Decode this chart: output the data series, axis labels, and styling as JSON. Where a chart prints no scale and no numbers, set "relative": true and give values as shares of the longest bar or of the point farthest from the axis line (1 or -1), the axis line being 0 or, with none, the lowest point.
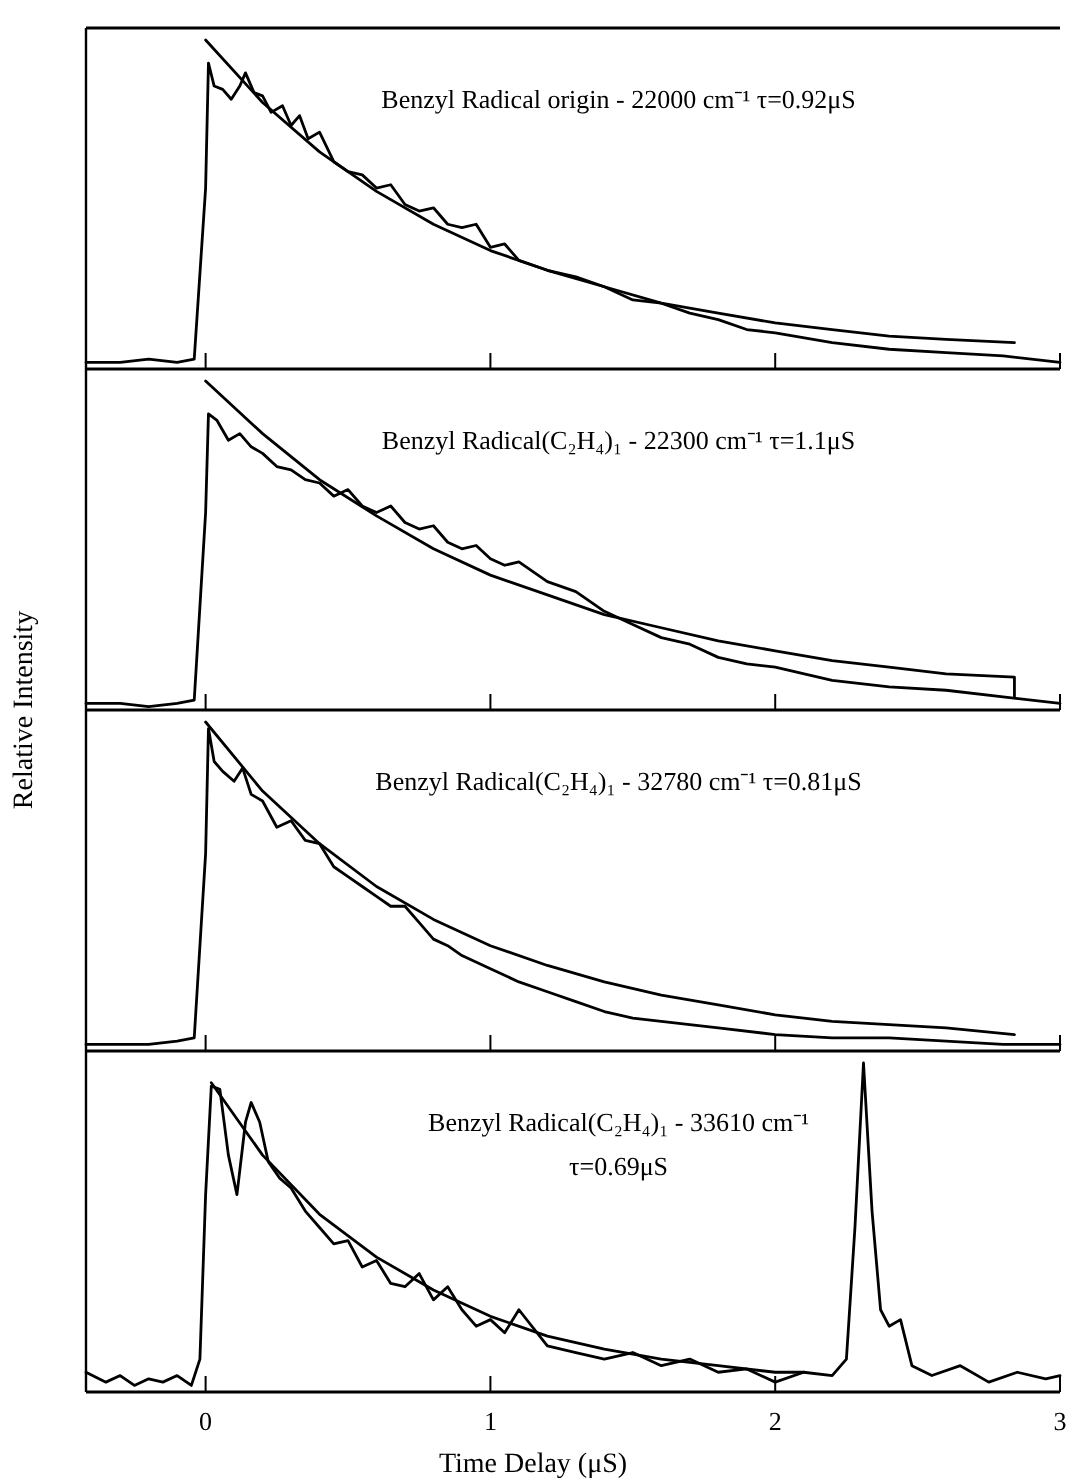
{
  "chart_data": [
    {
      "type": "line",
      "relative": true,
      "xlim": [
        -0.42,
        3
      ],
      "xticks": [
        0,
        1,
        2,
        3
      ],
      "tick_labels": false,
      "grid": false,
      "annotations": [
        "Benzyl Radical origin - 22000 cm⁻¹  τ=0.92μS"
      ],
      "series": [
        {
          "color": "#000000",
          "x": [
            -0.42,
            -0.3,
            -0.2,
            -0.1,
            -0.04,
            0,
            0.01,
            0.03,
            0.06,
            0.09,
            0.12,
            0.14,
            0.17,
            0.2,
            0.23,
            0.27,
            0.3,
            0.33,
            0.36,
            0.4,
            0.45,
            0.5,
            0.55,
            0.6,
            0.65,
            0.7,
            0.75,
            0.8,
            0.85,
            0.9,
            0.95,
            1.0,
            1.05,
            1.1,
            1.2,
            1.3,
            1.4,
            1.5,
            1.6,
            1.7,
            1.8,
            1.9,
            2.0,
            2.2,
            2.4,
            2.6,
            2.8,
            3.0
          ],
          "values": [
            0.02,
            0.02,
            0.03,
            0.02,
            0.03,
            0.55,
            0.93,
            0.86,
            0.85,
            0.82,
            0.86,
            0.9,
            0.84,
            0.83,
            0.78,
            0.8,
            0.74,
            0.77,
            0.7,
            0.72,
            0.63,
            0.6,
            0.59,
            0.55,
            0.56,
            0.5,
            0.48,
            0.49,
            0.44,
            0.43,
            0.44,
            0.37,
            0.38,
            0.33,
            0.3,
            0.28,
            0.25,
            0.21,
            0.2,
            0.17,
            0.15,
            0.12,
            0.11,
            0.08,
            0.06,
            0.05,
            0.04,
            0.02
          ]
        },
        {
          "color": "#000000",
          "x": [
            0,
            0.2,
            0.4,
            0.6,
            0.8,
            1.0,
            1.2,
            1.4,
            1.6,
            1.8,
            2.0,
            2.2,
            2.4,
            2.6,
            2.84
          ],
          "values": [
            1.0,
            0.81,
            0.66,
            0.54,
            0.44,
            0.36,
            0.3,
            0.25,
            0.2,
            0.17,
            0.14,
            0.12,
            0.1,
            0.09,
            0.08
          ]
        }
      ]
    },
    {
      "type": "line",
      "relative": true,
      "xlim": [
        -0.42,
        3
      ],
      "xticks": [
        0,
        1,
        2,
        3
      ],
      "tick_labels": false,
      "grid": false,
      "ylabel": "Relative Intensity",
      "annotations": [
        "Benzyl Radical(C₂H₄)₁ - 22300 cm⁻¹  τ=1.1μS"
      ],
      "series": [
        {
          "color": "#000000",
          "x": [
            -0.42,
            -0.3,
            -0.2,
            -0.1,
            -0.04,
            0,
            0.01,
            0.04,
            0.08,
            0.12,
            0.16,
            0.2,
            0.25,
            0.3,
            0.35,
            0.4,
            0.45,
            0.5,
            0.55,
            0.6,
            0.65,
            0.7,
            0.75,
            0.8,
            0.85,
            0.9,
            0.95,
            1.0,
            1.05,
            1.1,
            1.2,
            1.3,
            1.4,
            1.5,
            1.6,
            1.7,
            1.8,
            1.9,
            2.0,
            2.2,
            2.4,
            2.6,
            2.8,
            3.0
          ],
          "values": [
            0.02,
            0.02,
            0.01,
            0.02,
            0.03,
            0.6,
            0.9,
            0.88,
            0.82,
            0.84,
            0.8,
            0.78,
            0.74,
            0.73,
            0.7,
            0.69,
            0.65,
            0.67,
            0.62,
            0.6,
            0.62,
            0.57,
            0.55,
            0.56,
            0.51,
            0.49,
            0.5,
            0.46,
            0.44,
            0.45,
            0.39,
            0.36,
            0.3,
            0.26,
            0.22,
            0.2,
            0.16,
            0.14,
            0.13,
            0.09,
            0.07,
            0.06,
            0.04,
            0.02
          ]
        },
        {
          "color": "#000000",
          "x": [
            0,
            0.2,
            0.4,
            0.6,
            0.8,
            1.0,
            1.2,
            1.4,
            1.6,
            1.8,
            2.0,
            2.2,
            2.4,
            2.6,
            2.84,
            2.84
          ],
          "values": [
            1.0,
            0.84,
            0.7,
            0.59,
            0.49,
            0.41,
            0.35,
            0.29,
            0.25,
            0.21,
            0.18,
            0.15,
            0.13,
            0.11,
            0.1,
            0.04
          ]
        }
      ]
    },
    {
      "type": "line",
      "relative": true,
      "xlim": [
        -0.42,
        3
      ],
      "xticks": [
        0,
        1,
        2,
        3
      ],
      "tick_labels": false,
      "grid": false,
      "annotations": [
        "Benzyl Radical(C₂H₄)₁ - 32780 cm⁻¹ τ=0.81μS"
      ],
      "series": [
        {
          "color": "#000000",
          "x": [
            -0.42,
            -0.3,
            -0.2,
            -0.1,
            -0.04,
            0,
            0.01,
            0.03,
            0.06,
            0.1,
            0.13,
            0.16,
            0.2,
            0.25,
            0.3,
            0.35,
            0.4,
            0.45,
            0.5,
            0.55,
            0.6,
            0.65,
            0.7,
            0.75,
            0.8,
            0.85,
            0.9,
            1.0,
            1.1,
            1.2,
            1.3,
            1.4,
            1.5,
            1.6,
            1.8,
            2.0,
            2.2,
            2.4,
            2.6,
            2.8,
            3.0
          ],
          "values": [
            0.02,
            0.02,
            0.02,
            0.03,
            0.04,
            0.6,
            0.98,
            0.88,
            0.85,
            0.82,
            0.86,
            0.78,
            0.76,
            0.68,
            0.7,
            0.64,
            0.63,
            0.56,
            0.53,
            0.5,
            0.47,
            0.44,
            0.44,
            0.39,
            0.34,
            0.32,
            0.29,
            0.25,
            0.21,
            0.18,
            0.15,
            0.12,
            0.1,
            0.09,
            0.07,
            0.05,
            0.04,
            0.04,
            0.03,
            0.02,
            0.02
          ]
        },
        {
          "color": "#000000",
          "x": [
            0,
            0.2,
            0.4,
            0.6,
            0.8,
            1.0,
            1.2,
            1.4,
            1.6,
            1.8,
            2.0,
            2.2,
            2.4,
            2.6,
            2.84
          ],
          "values": [
            1.0,
            0.79,
            0.63,
            0.5,
            0.4,
            0.32,
            0.26,
            0.21,
            0.17,
            0.14,
            0.11,
            0.09,
            0.08,
            0.07,
            0.05
          ]
        }
      ]
    },
    {
      "type": "line",
      "relative": true,
      "xlim": [
        -0.42,
        3
      ],
      "xticks": [
        0,
        1,
        2,
        3
      ],
      "tick_labels": "x",
      "grid": false,
      "xlabel": "Time Delay (μS)",
      "annotations": [
        "Benzyl Radical(C₂H₄)₁ - 33610 cm⁻¹",
        "τ=0.69μS"
      ],
      "series": [
        {
          "color": "#000000",
          "x": [
            -0.42,
            -0.35,
            -0.3,
            -0.25,
            -0.2,
            -0.15,
            -0.1,
            -0.05,
            -0.02,
            0,
            0.02,
            0.05,
            0.08,
            0.11,
            0.14,
            0.16,
            0.19,
            0.22,
            0.26,
            0.3,
            0.35,
            0.4,
            0.45,
            0.5,
            0.55,
            0.6,
            0.65,
            0.7,
            0.75,
            0.8,
            0.85,
            0.9,
            0.95,
            1.0,
            1.05,
            1.1,
            1.2,
            1.3,
            1.4,
            1.5,
            1.6,
            1.7,
            1.8,
            1.9,
            2.0,
            2.1,
            2.2,
            2.25,
            2.28,
            2.31,
            2.34,
            2.37,
            2.4,
            2.44,
            2.48,
            2.55,
            2.65,
            2.75,
            2.85,
            2.95,
            3.0
          ],
          "values": [
            0.06,
            0.03,
            0.05,
            0.02,
            0.04,
            0.03,
            0.05,
            0.02,
            0.1,
            0.6,
            0.93,
            0.92,
            0.72,
            0.6,
            0.82,
            0.88,
            0.82,
            0.7,
            0.65,
            0.62,
            0.55,
            0.5,
            0.45,
            0.46,
            0.38,
            0.4,
            0.33,
            0.32,
            0.36,
            0.28,
            0.32,
            0.25,
            0.2,
            0.22,
            0.18,
            0.25,
            0.14,
            0.12,
            0.1,
            0.12,
            0.08,
            0.1,
            0.06,
            0.07,
            0.03,
            0.06,
            0.05,
            0.1,
            0.5,
            1.0,
            0.55,
            0.25,
            0.2,
            0.22,
            0.08,
            0.05,
            0.08,
            0.03,
            0.06,
            0.04,
            0.05
          ]
        },
        {
          "color": "#000000",
          "x": [
            0.02,
            0.2,
            0.4,
            0.6,
            0.8,
            1.0,
            1.2,
            1.4,
            1.6,
            1.8,
            2.0,
            2.1
          ],
          "values": [
            0.94,
            0.72,
            0.54,
            0.41,
            0.31,
            0.23,
            0.17,
            0.13,
            0.1,
            0.08,
            0.06,
            0.06
          ]
        }
      ]
    }
  ]
}
